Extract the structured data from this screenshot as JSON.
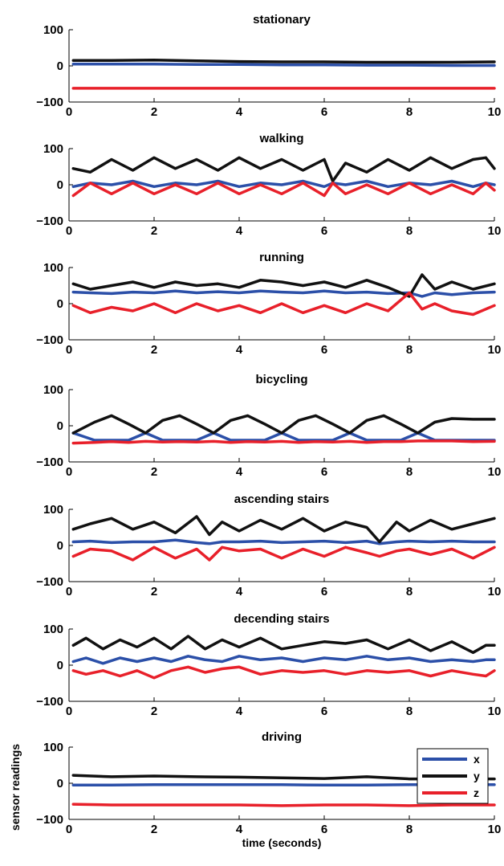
{
  "colors": {
    "x": "#2b4fa8",
    "y": "#111111",
    "z": "#e8202a"
  },
  "chart_data": [
    {
      "type": "line",
      "title": "stationary",
      "xlim": [
        0,
        10
      ],
      "ylim": [
        -100,
        100
      ],
      "xticks": [
        "0",
        "2",
        "4",
        "6",
        "8",
        "10"
      ],
      "yticks": [
        "100",
        "0",
        "−100"
      ],
      "x": [
        0.1,
        1,
        2,
        3,
        4,
        5,
        6,
        7,
        8,
        9,
        10
      ],
      "series": [
        {
          "name": "x",
          "values": [
            5,
            5,
            5,
            4,
            4,
            3,
            3,
            2,
            2,
            1,
            1
          ]
        },
        {
          "name": "y",
          "values": [
            15,
            15,
            16,
            14,
            12,
            11,
            11,
            10,
            10,
            10,
            11
          ]
        },
        {
          "name": "z",
          "values": [
            -62,
            -62,
            -62,
            -62,
            -62,
            -62,
            -62,
            -62,
            -62,
            -62,
            -62
          ]
        }
      ]
    },
    {
      "type": "line",
      "title": "walking",
      "xlim": [
        0,
        10
      ],
      "ylim": [
        -100,
        100
      ],
      "xticks": [
        "0",
        "2",
        "4",
        "6",
        "8",
        "10"
      ],
      "yticks": [
        "100",
        "0",
        "−100"
      ],
      "x": [
        0.1,
        0.5,
        1,
        1.5,
        2,
        2.5,
        3,
        3.5,
        4,
        4.5,
        5,
        5.5,
        6,
        6.2,
        6.5,
        7,
        7.5,
        8,
        8.5,
        9,
        9.5,
        9.8,
        10
      ],
      "series": [
        {
          "name": "x",
          "values": [
            -5,
            5,
            0,
            10,
            -5,
            5,
            0,
            10,
            -5,
            5,
            0,
            10,
            -5,
            5,
            0,
            10,
            -5,
            5,
            0,
            10,
            -5,
            5,
            0
          ]
        },
        {
          "name": "y",
          "values": [
            45,
            35,
            70,
            40,
            75,
            45,
            70,
            40,
            75,
            45,
            70,
            40,
            70,
            10,
            60,
            35,
            70,
            40,
            75,
            45,
            70,
            75,
            45
          ]
        },
        {
          "name": "z",
          "values": [
            -30,
            5,
            -25,
            5,
            -25,
            0,
            -25,
            5,
            -25,
            0,
            -25,
            5,
            -30,
            5,
            -25,
            0,
            -25,
            5,
            -25,
            0,
            -25,
            5,
            -15
          ]
        }
      ]
    },
    {
      "type": "line",
      "title": "running",
      "xlim": [
        0,
        10
      ],
      "ylim": [
        -100,
        100
      ],
      "xticks": [
        "0",
        "2",
        "4",
        "6",
        "8",
        "10"
      ],
      "yticks": [
        "100",
        "0",
        "−100"
      ],
      "x": [
        0.1,
        0.5,
        1,
        1.5,
        2,
        2.5,
        3,
        3.5,
        4,
        4.5,
        5,
        5.5,
        6,
        6.5,
        7,
        7.5,
        8,
        8.3,
        8.6,
        9,
        9.5,
        10
      ],
      "series": [
        {
          "name": "x",
          "values": [
            32,
            30,
            28,
            32,
            30,
            35,
            30,
            33,
            30,
            35,
            32,
            30,
            35,
            30,
            32,
            28,
            30,
            20,
            30,
            25,
            30,
            32
          ]
        },
        {
          "name": "y",
          "values": [
            55,
            40,
            50,
            60,
            45,
            60,
            50,
            55,
            45,
            65,
            60,
            50,
            60,
            45,
            65,
            45,
            20,
            80,
            40,
            60,
            40,
            55
          ]
        },
        {
          "name": "z",
          "values": [
            -5,
            -25,
            -10,
            -20,
            0,
            -25,
            0,
            -20,
            -5,
            -25,
            0,
            -25,
            -5,
            -25,
            0,
            -20,
            30,
            -15,
            0,
            -20,
            -30,
            -5
          ]
        }
      ]
    },
    {
      "type": "line",
      "title": "bicycling",
      "xlim": [
        0,
        10
      ],
      "ylim": [
        -100,
        100
      ],
      "xticks": [
        "0",
        "2",
        "4",
        "6",
        "8",
        "10"
      ],
      "yticks": [
        "100",
        "0",
        "−100"
      ],
      "x": [
        0.1,
        0.6,
        1,
        1.4,
        1.8,
        2.2,
        2.6,
        3,
        3.4,
        3.8,
        4.2,
        4.6,
        5,
        5.4,
        5.8,
        6.2,
        6.6,
        7,
        7.4,
        7.8,
        8.2,
        8.6,
        9,
        9.5,
        10
      ],
      "series": [
        {
          "name": "x",
          "values": [
            -20,
            -40,
            -40,
            -40,
            -20,
            -40,
            -40,
            -40,
            -20,
            -40,
            -40,
            -40,
            -20,
            -40,
            -40,
            -40,
            -20,
            -40,
            -40,
            -40,
            -20,
            -40,
            -40,
            -40,
            -40
          ]
        },
        {
          "name": "y",
          "values": [
            -20,
            10,
            28,
            5,
            -20,
            15,
            28,
            5,
            -20,
            15,
            28,
            5,
            -20,
            15,
            28,
            5,
            -20,
            15,
            28,
            5,
            -20,
            10,
            20,
            18,
            18
          ]
        },
        {
          "name": "z",
          "values": [
            -48,
            -46,
            -44,
            -46,
            -43,
            -45,
            -44,
            -45,
            -43,
            -46,
            -44,
            -45,
            -43,
            -46,
            -44,
            -45,
            -43,
            -46,
            -44,
            -44,
            -42,
            -42,
            -42,
            -44,
            -43
          ]
        }
      ]
    },
    {
      "type": "line",
      "title": "ascending stairs",
      "xlim": [
        0,
        10
      ],
      "ylim": [
        -100,
        100
      ],
      "xticks": [
        "0",
        "2",
        "4",
        "6",
        "8",
        "10"
      ],
      "yticks": [
        "100",
        "0",
        "−100"
      ],
      "x": [
        0.1,
        0.5,
        1,
        1.5,
        2,
        2.5,
        3,
        3.3,
        3.6,
        4,
        4.5,
        5,
        5.5,
        6,
        6.5,
        7,
        7.3,
        7.7,
        8,
        8.5,
        9,
        9.5,
        10
      ],
      "series": [
        {
          "name": "x",
          "values": [
            10,
            12,
            8,
            10,
            10,
            15,
            8,
            5,
            10,
            10,
            12,
            8,
            10,
            12,
            8,
            12,
            5,
            10,
            12,
            10,
            12,
            10,
            10
          ]
        },
        {
          "name": "y",
          "values": [
            45,
            60,
            75,
            45,
            65,
            35,
            80,
            30,
            65,
            40,
            70,
            45,
            75,
            40,
            65,
            50,
            10,
            65,
            40,
            70,
            45,
            60,
            75
          ]
        },
        {
          "name": "z",
          "values": [
            -30,
            -10,
            -15,
            -40,
            -5,
            -35,
            -10,
            -40,
            -5,
            -15,
            -10,
            -35,
            -10,
            -30,
            -5,
            -20,
            -30,
            -15,
            -10,
            -25,
            -10,
            -35,
            -5
          ]
        }
      ]
    },
    {
      "type": "line",
      "title": "decending stairs",
      "xlim": [
        0,
        10
      ],
      "ylim": [
        -100,
        100
      ],
      "xticks": [
        "0",
        "2",
        "4",
        "6",
        "8",
        "10"
      ],
      "yticks": [
        "100",
        "0",
        "−100"
      ],
      "x": [
        0.1,
        0.4,
        0.8,
        1.2,
        1.6,
        2,
        2.4,
        2.8,
        3.2,
        3.6,
        4,
        4.5,
        5,
        5.5,
        6,
        6.5,
        7,
        7.5,
        8,
        8.5,
        9,
        9.5,
        9.8,
        10
      ],
      "series": [
        {
          "name": "x",
          "values": [
            10,
            20,
            5,
            20,
            10,
            20,
            10,
            25,
            15,
            10,
            25,
            15,
            20,
            10,
            20,
            15,
            25,
            15,
            20,
            10,
            15,
            10,
            15,
            15
          ]
        },
        {
          "name": "y",
          "values": [
            55,
            75,
            45,
            70,
            50,
            75,
            45,
            80,
            45,
            70,
            50,
            75,
            45,
            55,
            65,
            60,
            70,
            45,
            70,
            40,
            65,
            35,
            55,
            55
          ]
        },
        {
          "name": "z",
          "values": [
            -15,
            -25,
            -15,
            -30,
            -15,
            -35,
            -15,
            -5,
            -20,
            -10,
            -5,
            -25,
            -15,
            -20,
            -15,
            -25,
            -15,
            -20,
            -15,
            -30,
            -15,
            -25,
            -30,
            -15
          ]
        }
      ]
    },
    {
      "type": "line",
      "title": "driving",
      "xlim": [
        0,
        10
      ],
      "ylim": [
        -100,
        100
      ],
      "xticks": [
        "0",
        "2",
        "4",
        "6",
        "8",
        "10"
      ],
      "yticks": [
        "100",
        "0",
        "−100"
      ],
      "xlabel": "time (seconds)",
      "ylabel": "sensor readings",
      "legend": {
        "placement": "right",
        "entries": [
          "x",
          "y",
          "z"
        ]
      },
      "x": [
        0.1,
        1,
        2,
        3,
        4,
        5,
        6,
        7,
        8,
        9,
        10
      ],
      "series": [
        {
          "name": "x",
          "values": [
            -5,
            -5,
            -4,
            -4,
            -4,
            -4,
            -5,
            -5,
            -4,
            -4,
            -4
          ]
        },
        {
          "name": "y",
          "values": [
            22,
            18,
            20,
            18,
            17,
            15,
            13,
            18,
            12,
            12,
            12
          ]
        },
        {
          "name": "z",
          "values": [
            -58,
            -60,
            -60,
            -60,
            -60,
            -62,
            -60,
            -60,
            -62,
            -60,
            -60
          ]
        }
      ]
    }
  ]
}
